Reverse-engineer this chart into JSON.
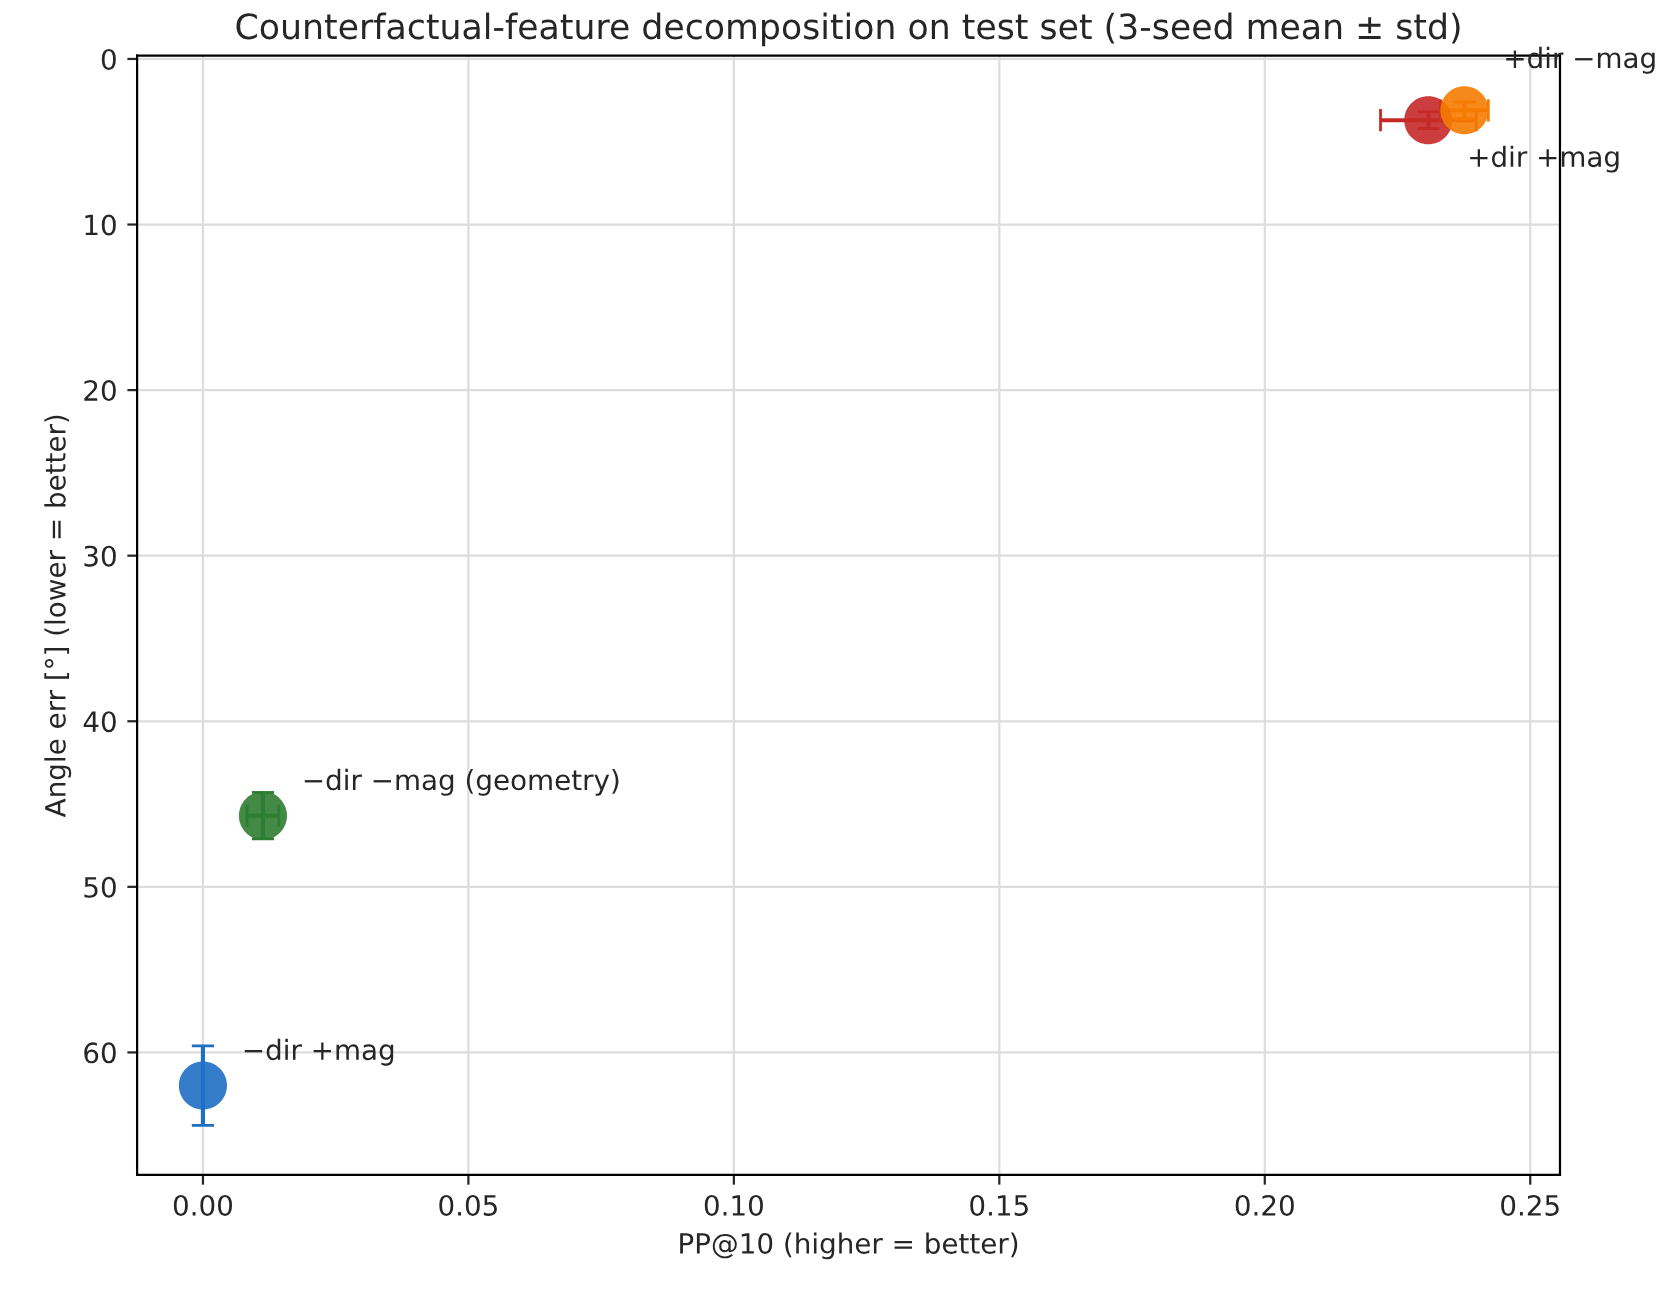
{
  "chart_data": {
    "type": "scatter",
    "title": "Counterfactual-feature decomposition on test set (3-seed mean ± std)",
    "xlabel": "PP@10 (higher = better)",
    "ylabel": "Angle err [°] (lower = better)",
    "series": [
      {
        "name": "−dir +mag",
        "color": "#1f6fc5",
        "x": [
          0.0
        ],
        "values": [
          62.0
        ],
        "errors": [
          2.4
        ],
        "xerrors": [
          0.0
        ]
      },
      {
        "name": "−dir −mag (geometry)",
        "color": "#2e7d32",
        "x": [
          0.0113
        ],
        "values": [
          45.7
        ],
        "errors": [
          1.4
        ],
        "xerrors": [
          0.003
        ]
      },
      {
        "name": "+dir +mag",
        "color": "#c62828",
        "x": [
          0.2308
        ],
        "values": [
          3.7
        ],
        "errors": [
          0.5
        ],
        "xerrors": [
          0.009
        ]
      },
      {
        "name": "+dir −mag",
        "color": "#f57c00",
        "x": [
          0.2376
        ],
        "values": [
          3.1
        ],
        "errors": [
          0.5
        ],
        "xerrors": [
          0.0045
        ]
      }
    ],
    "marker": "circle",
    "grid": true,
    "xlim": [
      -0.0124,
      0.2556
    ],
    "ylim": [
      67.4,
      -0.2
    ],
    "xticks": [
      {
        "value": 0,
        "label": "0.00"
      },
      {
        "value": 0.05,
        "label": "0.05"
      },
      {
        "value": 0.1,
        "label": "0.10"
      },
      {
        "value": 0.15,
        "label": "0.15"
      },
      {
        "value": 0.2,
        "label": "0.20"
      },
      {
        "value": 0.25,
        "label": "0.25"
      }
    ],
    "yticks": [
      0,
      10,
      20,
      30,
      40,
      50,
      60
    ]
  }
}
